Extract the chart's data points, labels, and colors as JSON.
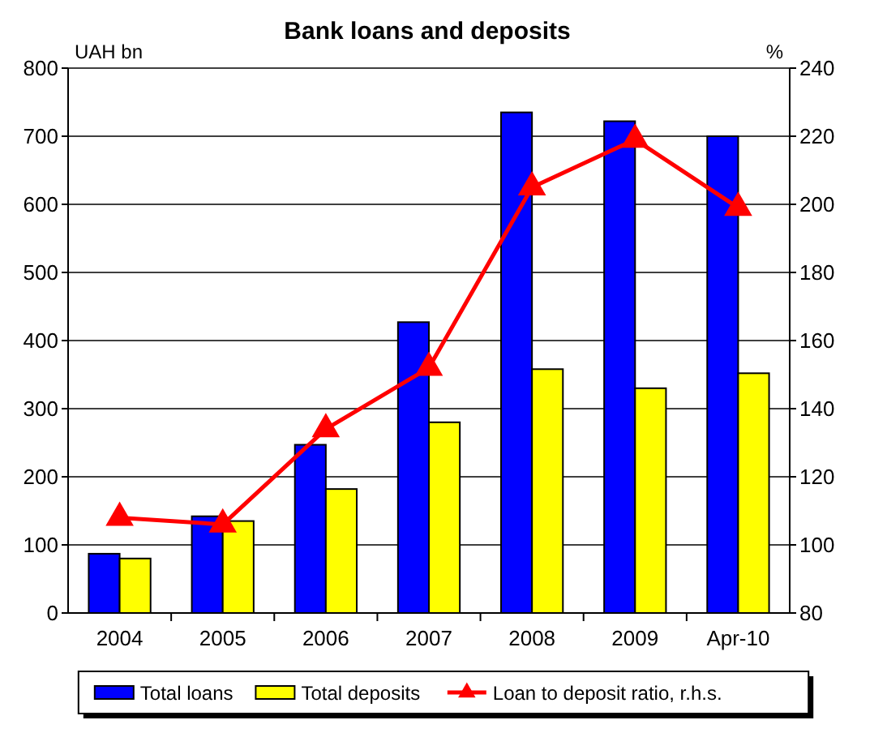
{
  "chart_data": {
    "type": "bar",
    "title": "Bank loans and deposits",
    "ylabel": "UAH bn",
    "y2label": "%",
    "categories": [
      "2004",
      "2005",
      "2006",
      "2007",
      "2008",
      "2009",
      "Apr-10"
    ],
    "series": [
      {
        "name": "Total loans",
        "color": "#0000ff",
        "values": [
          87,
          142,
          247,
          427,
          735,
          722,
          700
        ]
      },
      {
        "name": "Total deposits",
        "color": "#ffff00",
        "values": [
          80,
          135,
          182,
          280,
          358,
          330,
          352
        ]
      },
      {
        "name": "Loan to deposit ratio, r.h.s.",
        "type": "line",
        "axis": "y2",
        "color": "#ff0000",
        "marker": "triangle",
        "values": [
          108,
          106,
          134,
          152,
          205,
          219,
          199
        ]
      }
    ],
    "ylim": [
      0,
      800
    ],
    "yticks": [
      0,
      100,
      200,
      300,
      400,
      500,
      600,
      700,
      800
    ],
    "y2lim": [
      80,
      240
    ],
    "y2ticks": [
      80,
      100,
      120,
      140,
      160,
      180,
      200,
      220,
      240
    ],
    "grid": "y",
    "legend": "bottom"
  }
}
